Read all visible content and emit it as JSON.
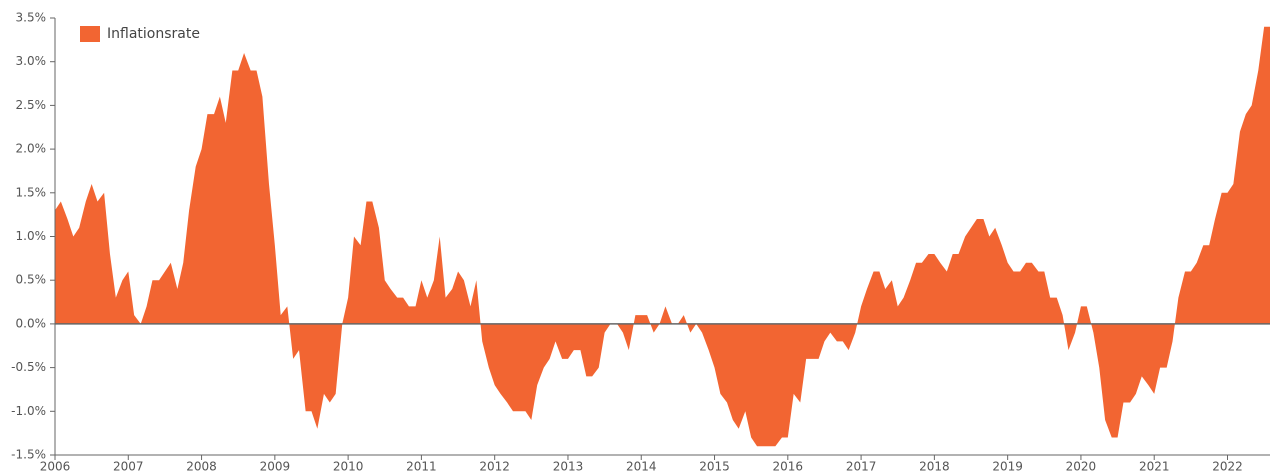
{
  "chart_data": {
    "type": "area",
    "series": [
      {
        "name": "Inflationsrate",
        "color": "#f26532",
        "x": [
          2006,
          2006.08,
          2006.17,
          2006.25,
          2006.33,
          2006.42,
          2006.5,
          2006.58,
          2006.67,
          2006.75,
          2006.83,
          2006.92,
          2007,
          2007.08,
          2007.17,
          2007.25,
          2007.33,
          2007.42,
          2007.5,
          2007.58,
          2007.67,
          2007.75,
          2007.83,
          2007.92,
          2008,
          2008.08,
          2008.17,
          2008.25,
          2008.33,
          2008.42,
          2008.5,
          2008.58,
          2008.67,
          2008.75,
          2008.83,
          2008.92,
          2009,
          2009.08,
          2009.17,
          2009.25,
          2009.33,
          2009.42,
          2009.5,
          2009.58,
          2009.67,
          2009.75,
          2009.83,
          2009.92,
          2010,
          2010.08,
          2010.17,
          2010.25,
          2010.33,
          2010.42,
          2010.5,
          2010.58,
          2010.67,
          2010.75,
          2010.83,
          2010.92,
          2011,
          2011.08,
          2011.17,
          2011.25,
          2011.33,
          2011.42,
          2011.5,
          2011.58,
          2011.67,
          2011.75,
          2011.83,
          2011.92,
          2012,
          2012.08,
          2012.17,
          2012.25,
          2012.33,
          2012.42,
          2012.5,
          2012.58,
          2012.67,
          2012.75,
          2012.83,
          2012.92,
          2013,
          2013.08,
          2013.17,
          2013.25,
          2013.33,
          2013.42,
          2013.5,
          2013.58,
          2013.67,
          2013.75,
          2013.83,
          2013.92,
          2014,
          2014.08,
          2014.17,
          2014.25,
          2014.33,
          2014.42,
          2014.5,
          2014.58,
          2014.67,
          2014.75,
          2014.83,
          2014.92,
          2015,
          2015.08,
          2015.17,
          2015.25,
          2015.33,
          2015.42,
          2015.5,
          2015.58,
          2015.67,
          2015.75,
          2015.83,
          2015.92,
          2016,
          2016.08,
          2016.17,
          2016.25,
          2016.33,
          2016.42,
          2016.5,
          2016.58,
          2016.67,
          2016.75,
          2016.83,
          2016.92,
          2017,
          2017.08,
          2017.17,
          2017.25,
          2017.33,
          2017.42,
          2017.5,
          2017.58,
          2017.67,
          2017.75,
          2017.83,
          2017.92,
          2018,
          2018.08,
          2018.17,
          2018.25,
          2018.33,
          2018.42,
          2018.5,
          2018.58,
          2018.67,
          2018.75,
          2018.83,
          2018.92,
          2019,
          2019.08,
          2019.17,
          2019.25,
          2019.33,
          2019.42,
          2019.5,
          2019.58,
          2019.67,
          2019.75,
          2019.83,
          2019.92,
          2020,
          2020.08,
          2020.17,
          2020.25,
          2020.33,
          2020.42,
          2020.5,
          2020.58,
          2020.67,
          2020.75,
          2020.83,
          2020.92,
          2021,
          2021.08,
          2021.17,
          2021.25,
          2021.33,
          2021.42,
          2021.5,
          2021.58,
          2021.67,
          2021.75,
          2021.83,
          2021.92,
          2022,
          2022.08,
          2022.17,
          2022.25,
          2022.33,
          2022.42,
          2022.5,
          2022.58
        ],
        "values": [
          1.3,
          1.4,
          1.2,
          1.0,
          1.1,
          1.4,
          1.6,
          1.4,
          1.5,
          0.8,
          0.3,
          0.5,
          0.6,
          0.1,
          0.0,
          0.2,
          0.5,
          0.5,
          0.6,
          0.7,
          0.4,
          0.7,
          1.3,
          1.8,
          2.0,
          2.4,
          2.4,
          2.6,
          2.3,
          2.9,
          2.9,
          3.1,
          2.9,
          2.9,
          2.6,
          1.6,
          0.9,
          0.1,
          0.2,
          -0.4,
          -0.3,
          -1.0,
          -1.0,
          -1.2,
          -0.8,
          -0.9,
          -0.8,
          0.0,
          0.3,
          1.0,
          0.9,
          1.4,
          1.4,
          1.1,
          0.5,
          0.4,
          0.3,
          0.3,
          0.2,
          0.2,
          0.5,
          0.3,
          0.5,
          1.0,
          0.3,
          0.4,
          0.6,
          0.5,
          0.2,
          0.5,
          -0.2,
          -0.5,
          -0.7,
          -0.8,
          -0.9,
          -1.0,
          -1.0,
          -1.0,
          -1.1,
          -0.7,
          -0.5,
          -0.4,
          -0.2,
          -0.4,
          -0.4,
          -0.3,
          -0.3,
          -0.6,
          -0.6,
          -0.5,
          -0.1,
          0.0,
          0.0,
          -0.1,
          -0.3,
          0.1,
          0.1,
          0.1,
          -0.1,
          0.0,
          0.2,
          0.0,
          0.0,
          0.1,
          -0.1,
          0.0,
          -0.1,
          -0.3,
          -0.5,
          -0.8,
          -0.9,
          -1.1,
          -1.2,
          -1.0,
          -1.3,
          -1.4,
          -1.4,
          -1.4,
          -1.4,
          -1.3,
          -1.3,
          -0.8,
          -0.9,
          -0.4,
          -0.4,
          -0.4,
          -0.2,
          -0.1,
          -0.2,
          -0.2,
          -0.3,
          -0.1,
          0.2,
          0.4,
          0.6,
          0.6,
          0.4,
          0.5,
          0.2,
          0.3,
          0.5,
          0.7,
          0.7,
          0.8,
          0.8,
          0.7,
          0.6,
          0.8,
          0.8,
          1.0,
          1.1,
          1.2,
          1.2,
          1.0,
          1.1,
          0.9,
          0.7,
          0.6,
          0.6,
          0.7,
          0.7,
          0.6,
          0.6,
          0.3,
          0.3,
          0.1,
          -0.3,
          -0.1,
          0.2,
          0.2,
          -0.1,
          -0.5,
          -1.1,
          -1.3,
          -1.3,
          -0.9,
          -0.9,
          -0.8,
          -0.6,
          -0.7,
          -0.8,
          -0.5,
          -0.5,
          -0.2,
          0.3,
          0.6,
          0.6,
          0.7,
          0.9,
          0.9,
          1.2,
          1.5,
          1.5,
          1.6,
          2.2,
          2.4,
          2.5,
          2.9,
          3.4,
          3.4
        ]
      }
    ],
    "xlim": [
      2006,
      2022.58
    ],
    "xticks": [
      2006,
      2007,
      2008,
      2009,
      2010,
      2011,
      2012,
      2013,
      2014,
      2015,
      2016,
      2017,
      2018,
      2019,
      2020,
      2021,
      2022
    ],
    "ylim": [
      -1.5,
      3.5
    ],
    "yticks": [
      {
        "value": -1.5,
        "label": "-1.5%"
      },
      {
        "value": -1.0,
        "label": "-1.0%"
      },
      {
        "value": -0.5,
        "label": "-0.5%"
      },
      {
        "value": 0,
        "label": "0.0%"
      },
      {
        "value": 0.5,
        "label": "0.5%"
      },
      {
        "value": 1.0,
        "label": "1.0%"
      },
      {
        "value": 1.5,
        "label": "1.5%"
      },
      {
        "value": 2.0,
        "label": "2.0%"
      },
      {
        "value": 2.5,
        "label": "2.5%"
      },
      {
        "value": 3.0,
        "label": "3.0%"
      },
      {
        "value": 3.5,
        "label": "3.5%"
      }
    ],
    "legend": "top-left",
    "grid": false
  }
}
